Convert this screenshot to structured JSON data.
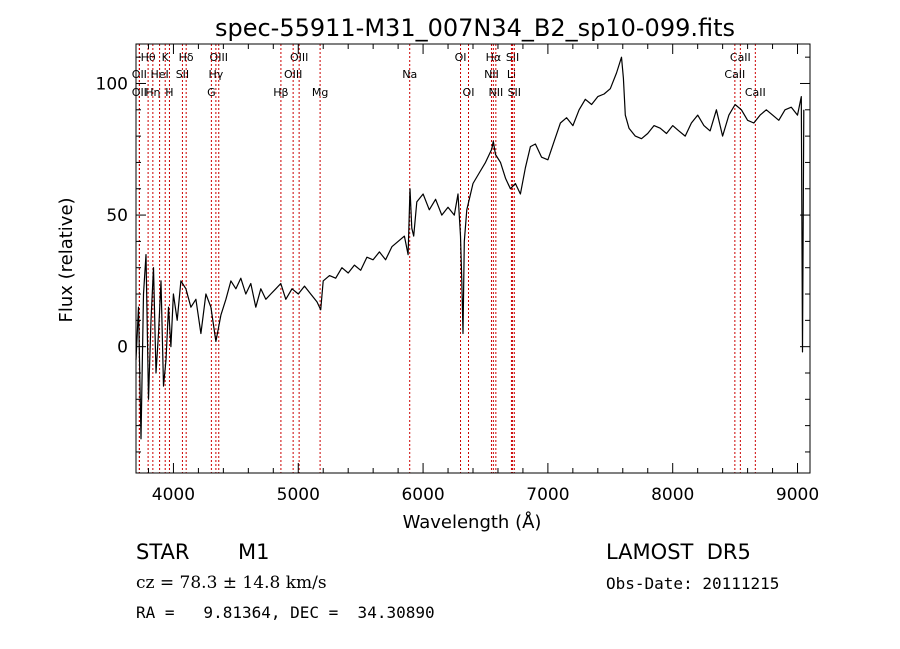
{
  "chart_data": {
    "type": "line",
    "title": "spec-55911-M31_007N34_B2_sp10-099.fits",
    "xlabel": "Wavelength (Å)",
    "ylabel": "Flux (relative)",
    "xlim": [
      3700,
      9100
    ],
    "ylim": [
      -48,
      115
    ],
    "x_ticks": [
      4000,
      5000,
      6000,
      7000,
      8000,
      9000
    ],
    "y_ticks": [
      0,
      50,
      100
    ],
    "grid": false,
    "series": [
      {
        "color": "#000000",
        "x": [
          3700,
          3720,
          3740,
          3760,
          3780,
          3800,
          3820,
          3840,
          3860,
          3880,
          3900,
          3920,
          3940,
          3960,
          3980,
          4000,
          4030,
          4060,
          4100,
          4140,
          4180,
          4220,
          4260,
          4300,
          4340,
          4380,
          4420,
          4460,
          4500,
          4540,
          4580,
          4620,
          4660,
          4700,
          4740,
          4780,
          4820,
          4860,
          4900,
          4950,
          5000,
          5050,
          5100,
          5150,
          5180,
          5200,
          5250,
          5300,
          5350,
          5400,
          5450,
          5500,
          5550,
          5600,
          5650,
          5700,
          5750,
          5800,
          5850,
          5880,
          5895,
          5910,
          5925,
          5950,
          6000,
          6050,
          6100,
          6150,
          6200,
          6250,
          6280,
          6300,
          6310,
          6320,
          6330,
          6350,
          6400,
          6450,
          6500,
          6550,
          6563,
          6580,
          6620,
          6660,
          6700,
          6740,
          6780,
          6820,
          6860,
          6900,
          6950,
          7000,
          7050,
          7100,
          7150,
          7200,
          7250,
          7300,
          7350,
          7400,
          7450,
          7500,
          7550,
          7590,
          7605,
          7620,
          7650,
          7700,
          7750,
          7800,
          7850,
          7900,
          7950,
          8000,
          8050,
          8100,
          8150,
          8200,
          8250,
          8300,
          8350,
          8400,
          8450,
          8500,
          8550,
          8600,
          8650,
          8700,
          8750,
          8800,
          8850,
          8900,
          8950,
          9000,
          9030,
          9040,
          9050
        ],
        "values": [
          -5,
          15,
          -35,
          20,
          35,
          -20,
          10,
          30,
          -10,
          5,
          25,
          -15,
          -5,
          15,
          0,
          20,
          10,
          25,
          22,
          15,
          18,
          5,
          20,
          15,
          2,
          12,
          18,
          25,
          22,
          26,
          20,
          24,
          15,
          22,
          18,
          20,
          22,
          24,
          18,
          22,
          20,
          23,
          20,
          17,
          14,
          25,
          27,
          26,
          30,
          28,
          31,
          29,
          34,
          33,
          36,
          33,
          38,
          40,
          42,
          35,
          60,
          45,
          42,
          55,
          58,
          52,
          56,
          50,
          53,
          50,
          58,
          42,
          25,
          5,
          40,
          52,
          62,
          66,
          70,
          75,
          78,
          73,
          70,
          64,
          60,
          62,
          58,
          68,
          76,
          77,
          72,
          71,
          78,
          85,
          87,
          84,
          90,
          94,
          92,
          95,
          96,
          98,
          104,
          110,
          102,
          88,
          83,
          80,
          79,
          81,
          84,
          83,
          81,
          84,
          82,
          80,
          85,
          88,
          84,
          82,
          90,
          80,
          88,
          92,
          90,
          86,
          85,
          88,
          90,
          88,
          86,
          90,
          91,
          88,
          95,
          -2,
          90
        ]
      }
    ],
    "line_markers": [
      {
        "label": "Hθ",
        "x": 3797,
        "row": 1
      },
      {
        "label": "OII",
        "x": 3727,
        "row": 2
      },
      {
        "label": "OII",
        "x": 3727,
        "row": 3
      },
      {
        "label": "Hη",
        "x": 3835,
        "row": 3
      },
      {
        "label": "HeI",
        "x": 3889,
        "row": 2
      },
      {
        "label": "K",
        "x": 3934,
        "row": 1
      },
      {
        "label": "H",
        "x": 3968,
        "row": 3
      },
      {
        "label": "Hδ",
        "x": 4102,
        "row": 1
      },
      {
        "label": "SII",
        "x": 4072,
        "row": 2
      },
      {
        "label": "OIII",
        "x": 4363,
        "row": 1
      },
      {
        "label": "Hγ",
        "x": 4340,
        "row": 2
      },
      {
        "label": "G",
        "x": 4304,
        "row": 3
      },
      {
        "label": "Hβ",
        "x": 4861,
        "row": 3
      },
      {
        "label": "OIII",
        "x": 5007,
        "row": 1
      },
      {
        "label": "OIII",
        "x": 4959,
        "row": 2
      },
      {
        "label": "Mg",
        "x": 5175,
        "row": 3
      },
      {
        "label": "Na",
        "x": 5893,
        "row": 2
      },
      {
        "label": "OI",
        "x": 6300,
        "row": 1
      },
      {
        "label": "OI",
        "x": 6364,
        "row": 3
      },
      {
        "label": "Hα",
        "x": 6563,
        "row": 1
      },
      {
        "label": "NII",
        "x": 6548,
        "row": 2
      },
      {
        "label": "NII",
        "x": 6583,
        "row": 3
      },
      {
        "label": "SII",
        "x": 6717,
        "row": 1
      },
      {
        "label": "Li",
        "x": 6708,
        "row": 2
      },
      {
        "label": "SII",
        "x": 6731,
        "row": 3
      },
      {
        "label": "CaII",
        "x": 8542,
        "row": 1
      },
      {
        "label": "CaII",
        "x": 8498,
        "row": 2
      },
      {
        "label": "CaII",
        "x": 8662,
        "row": 3
      }
    ],
    "marker_color": "#cc0000"
  },
  "info": {
    "object_class": "STAR",
    "subclass": "M1",
    "survey": "LAMOST  DR5",
    "cz_text": "cz = 78.3 ± 14.8 km/s",
    "obs_date": "Obs-Date: 20111215",
    "coords": "RA =   9.81364, DEC =  34.30890"
  }
}
